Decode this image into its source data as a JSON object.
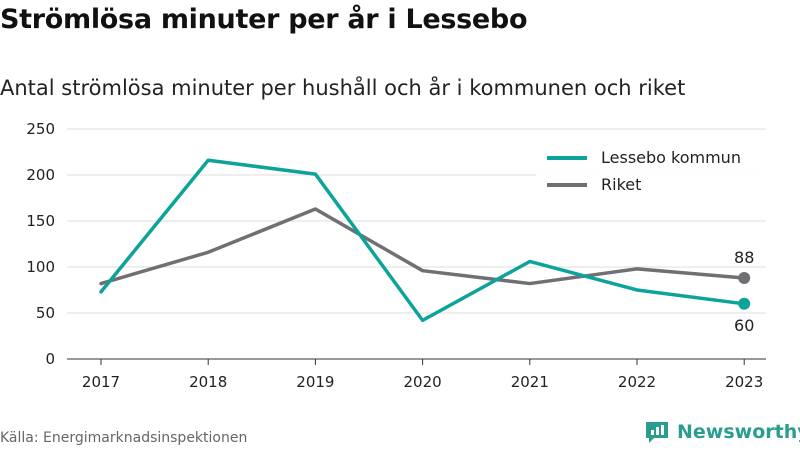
{
  "header": {
    "title": "Strömlösa minuter per år i Lessebo",
    "subtitle": "Antal strömlösa minuter per hushåll och år i kommunen och riket"
  },
  "footer": {
    "source": "Källa: Energimarknadsinspektionen",
    "brand": "Newsworthy"
  },
  "colors": {
    "lessebo": "#0ea39a",
    "riket": "#6f6f74",
    "grid": "#dddddd",
    "brand": "#2a9d8f"
  },
  "chart_data": {
    "type": "line",
    "title": "",
    "xlabel": "",
    "ylabel": "",
    "categories": [
      "2017",
      "2018",
      "2019",
      "2020",
      "2021",
      "2022",
      "2023"
    ],
    "ylim": [
      0,
      250
    ],
    "yticks": [
      0,
      50,
      100,
      150,
      200,
      250
    ],
    "grid": true,
    "legend_position": "top-right",
    "series": [
      {
        "name": "Lessebo kommun",
        "color": "#0ea39a",
        "values": [
          73,
          216,
          201,
          42,
          106,
          75,
          60
        ],
        "end_label": "60"
      },
      {
        "name": "Riket",
        "color": "#6f6f74",
        "values": [
          82,
          116,
          163,
          96,
          82,
          98,
          88
        ],
        "end_label": "88"
      }
    ]
  }
}
